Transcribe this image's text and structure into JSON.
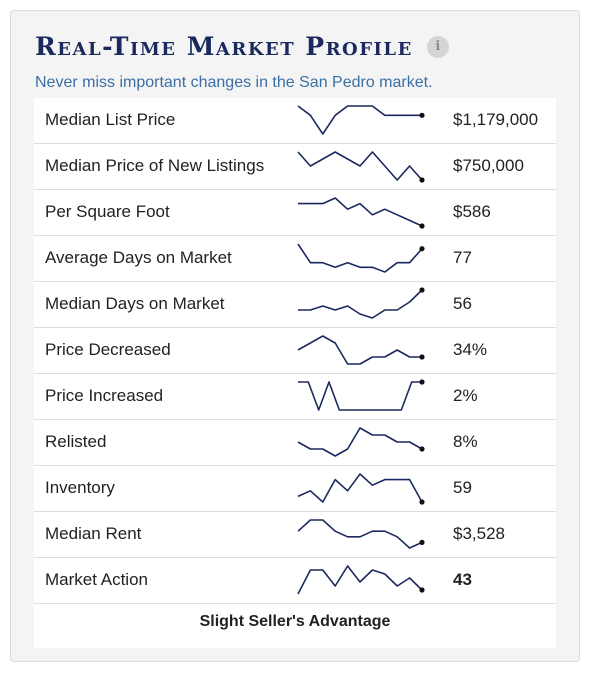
{
  "header": {
    "title": "Real-Time Market Profile",
    "info_icon_glyph": "i",
    "subtitle": "Never miss important changes in the San Pedro market."
  },
  "colors": {
    "title": "#1b2a5e",
    "subtitle": "#3b6fa6",
    "sparkline": "#1b2a5e",
    "card_background": "#f4f4f4"
  },
  "rows": [
    {
      "label": "Median List Price",
      "value": "$1,179,000",
      "bold": false,
      "trend": [
        8,
        7,
        5,
        7,
        8,
        8,
        8,
        7,
        7,
        7,
        7
      ]
    },
    {
      "label": "Median Price of New Listings",
      "value": "$750,000",
      "bold": false,
      "trend": [
        7,
        5,
        6,
        7,
        6,
        5,
        7,
        5,
        3,
        5,
        3
      ]
    },
    {
      "label": "Per Square Foot",
      "value": "$586",
      "bold": false,
      "trend": [
        7,
        7,
        7,
        8,
        6,
        7,
        5,
        6,
        5,
        4,
        3
      ]
    },
    {
      "label": "Average Days on Market",
      "value": "77",
      "bold": false,
      "trend": [
        9,
        5,
        5,
        4,
        5,
        4,
        4,
        3,
        5,
        5,
        8
      ]
    },
    {
      "label": "Median Days on Market",
      "value": "56",
      "bold": false,
      "trend": [
        4,
        4,
        5,
        4,
        5,
        3,
        2,
        4,
        4,
        6,
        9
      ]
    },
    {
      "label": "Price Decreased",
      "value": "34%",
      "bold": false,
      "trend": [
        5,
        6,
        7,
        6,
        3,
        3,
        4,
        4,
        5,
        4,
        4
      ]
    },
    {
      "label": "Price Increased",
      "value": "2%",
      "bold": false,
      "trend": [
        8,
        8,
        0,
        8,
        0,
        0,
        0,
        0,
        0,
        0,
        0,
        8,
        8
      ]
    },
    {
      "label": "Relisted",
      "value": "8%",
      "bold": false,
      "trend": [
        6,
        5,
        5,
        4,
        5,
        8,
        7,
        7,
        6,
        6,
        5
      ]
    },
    {
      "label": "Inventory",
      "value": "59",
      "bold": false,
      "trend": [
        4,
        5,
        3,
        7,
        5,
        8,
        6,
        7,
        7,
        7,
        3
      ]
    },
    {
      "label": "Median Rent",
      "value": "$3,528",
      "bold": false,
      "trend": [
        6,
        8,
        8,
        6,
        5,
        5,
        6,
        6,
        5,
        3,
        4
      ]
    },
    {
      "label": "Market Action",
      "value": "43",
      "bold": true,
      "trend": [
        2,
        8,
        8,
        4,
        9,
        5,
        8,
        7,
        4,
        6,
        3
      ]
    }
  ],
  "footer": {
    "status": "Slight Seller's Advantage"
  }
}
